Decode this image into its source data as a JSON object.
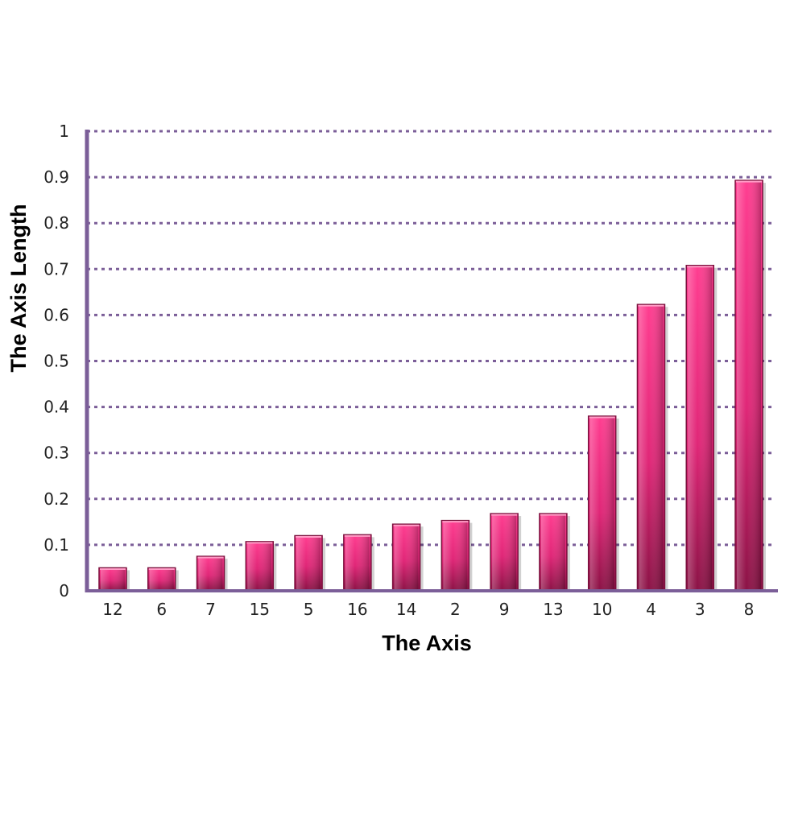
{
  "chart_data": {
    "type": "bar",
    "title": "",
    "xlabel": "The Axis",
    "ylabel": "The Axis Length",
    "categories": [
      "12",
      "6",
      "7",
      "15",
      "5",
      "16",
      "14",
      "2",
      "9",
      "13",
      "10",
      "4",
      "3",
      "8"
    ],
    "values": [
      0.05,
      0.05,
      0.075,
      0.107,
      0.12,
      0.122,
      0.145,
      0.153,
      0.168,
      0.168,
      0.38,
      0.623,
      0.708,
      0.893
    ],
    "ylim": [
      0,
      1
    ],
    "yticks": [
      "0",
      "0.1",
      "0.2",
      "0.3",
      "0.4",
      "0.5",
      "0.6",
      "0.7",
      "0.8",
      "0.9",
      "1"
    ],
    "grid": true,
    "legend": "none",
    "colors": {
      "bar": "#e8267a",
      "bar_dark": "#7a0f3c",
      "axis": "#7b5e98",
      "grid": "#7b5e98"
    }
  }
}
